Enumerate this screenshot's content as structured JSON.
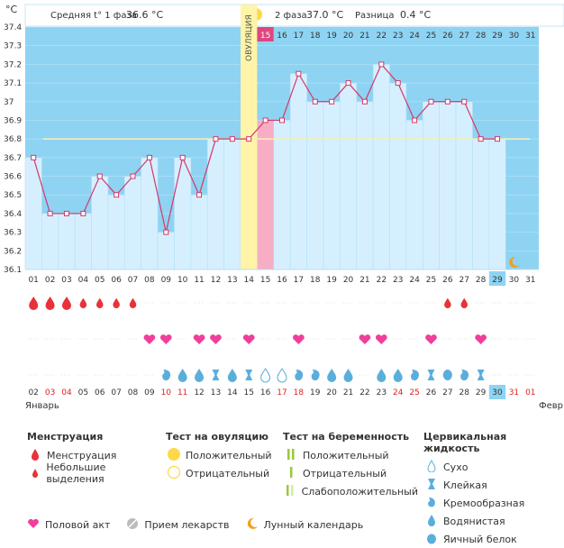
{
  "header": {
    "unit_label": "°C",
    "phase1_label": "Средняя t° 1 фаза",
    "phase1_value": "36.6 °C",
    "phase2_label": "2 фаза",
    "phase2_value": "37.0 °C",
    "diff_label": "Разница",
    "diff_value": "0.4 °C"
  },
  "ovulation_label": "ОВУЛЯЦИЯ",
  "colors": {
    "plot_bg": "#8fd3f2",
    "bar_fill": "#d6efff",
    "line": "#d1396b",
    "coverline": "#f4f0b0",
    "ovulation": "#fff4a8",
    "highlight_day": "#f7aec4",
    "current_day": "#8fd3f2"
  },
  "chart_data": {
    "type": "line",
    "x": [
      "01",
      "02",
      "03",
      "04",
      "05",
      "06",
      "07",
      "08",
      "09",
      "10",
      "11",
      "12",
      "13",
      "14",
      "15",
      "16",
      "17",
      "18",
      "19",
      "20",
      "21",
      "22",
      "23",
      "24",
      "25",
      "26",
      "27",
      "28",
      "29",
      "30",
      "31"
    ],
    "series": [
      {
        "values": [
          36.7,
          36.4,
          36.4,
          36.4,
          36.6,
          36.5,
          36.6,
          36.7,
          36.3,
          36.7,
          36.5,
          36.8,
          36.8,
          36.8,
          36.9,
          36.9,
          37.15,
          37.0,
          37.0,
          37.1,
          37.0,
          37.2,
          37.1,
          36.9,
          37.0,
          37.0,
          37.0,
          36.8,
          36.8,
          null,
          null
        ]
      }
    ],
    "yticks": [
      "36.1",
      "36.2",
      "36.3",
      "36.4",
      "36.5",
      "36.6",
      "36.7",
      "36.8",
      "36.9",
      "37",
      "37.1",
      "37.2",
      "37.3",
      "37.4"
    ],
    "ylim": [
      36.1,
      37.4
    ],
    "coverline": 36.8,
    "ovulation_day": "14",
    "highlight_day": "15",
    "current_day": "29"
  },
  "dates": {
    "days": [
      "02",
      "03",
      "04",
      "05",
      "06",
      "07",
      "08",
      "09",
      "10",
      "11",
      "12",
      "13",
      "14",
      "15",
      "16",
      "17",
      "18",
      "19",
      "20",
      "21",
      "22",
      "23",
      "24",
      "25",
      "26",
      "27",
      "28",
      "29",
      "30",
      "31",
      "01"
    ],
    "weekend_indices": [
      1,
      2,
      8,
      9,
      15,
      16,
      22,
      23,
      29,
      30
    ],
    "month_start": "Январь",
    "month_end": "Февр"
  },
  "markers": {
    "menstruation": [
      {
        "day": 0,
        "size": "big"
      },
      {
        "day": 1,
        "size": "big"
      },
      {
        "day": 2,
        "size": "big"
      },
      {
        "day": 3,
        "size": "small"
      },
      {
        "day": 4,
        "size": "small"
      },
      {
        "day": 5,
        "size": "small"
      },
      {
        "day": 6,
        "size": "small"
      },
      {
        "day": 25,
        "size": "small"
      },
      {
        "day": 26,
        "size": "small"
      }
    ],
    "intercourse": [
      7,
      8,
      10,
      11,
      13,
      16,
      20,
      21,
      24,
      27
    ],
    "cervical": [
      {
        "day": 8,
        "type": "creamy"
      },
      {
        "day": 9,
        "type": "watery"
      },
      {
        "day": 10,
        "type": "watery"
      },
      {
        "day": 11,
        "type": "sticky"
      },
      {
        "day": 12,
        "type": "watery"
      },
      {
        "day": 13,
        "type": "sticky"
      },
      {
        "day": 14,
        "type": "dry"
      },
      {
        "day": 15,
        "type": "dry"
      },
      {
        "day": 16,
        "type": "creamy"
      },
      {
        "day": 17,
        "type": "creamy"
      },
      {
        "day": 18,
        "type": "watery"
      },
      {
        "day": 19,
        "type": "watery"
      },
      {
        "day": 21,
        "type": "watery"
      },
      {
        "day": 22,
        "type": "watery"
      },
      {
        "day": 23,
        "type": "creamy"
      },
      {
        "day": 24,
        "type": "sticky"
      },
      {
        "day": 25,
        "type": "eggwhite"
      },
      {
        "day": 26,
        "type": "creamy"
      },
      {
        "day": 27,
        "type": "sticky"
      }
    ]
  },
  "legend": {
    "menstruation": {
      "title": "Менструация",
      "items": [
        "Менструация",
        "Небольшие выделения"
      ]
    },
    "ovulation_test": {
      "title": "Тест на овуляцию",
      "items": [
        "Положительный",
        "Отрицательный"
      ]
    },
    "pregnancy_test": {
      "title": "Тест на беременность",
      "items": [
        "Положительный",
        "Отрицательный",
        "Слабоположительный"
      ]
    },
    "cervical": {
      "title": "Цервикальная жидкость",
      "items": [
        "Сухо",
        "Клейкая",
        "Кремообразная",
        "Водянистая",
        "Яичный белок"
      ]
    },
    "bottom": {
      "intercourse": "Половой акт",
      "medicine": "Прием лекарств",
      "moon": "Лунный календарь"
    }
  }
}
